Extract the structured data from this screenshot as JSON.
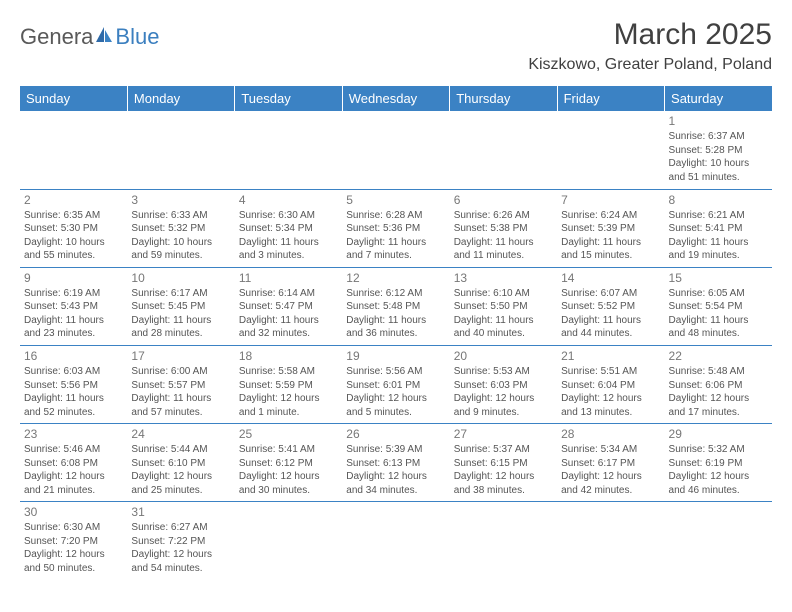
{
  "logo": {
    "primary": "Genera",
    "secondary": "Blue"
  },
  "title": "March 2025",
  "location": "Kiszkowo, Greater Poland, Poland",
  "colors": {
    "header_bg": "#3b82c4",
    "header_text": "#ffffff",
    "border": "#3b82c4",
    "body_text": "#555555",
    "title_text": "#404040",
    "logo_primary": "#595959",
    "logo_secondary": "#3b7fbf"
  },
  "weekdays": [
    "Sunday",
    "Monday",
    "Tuesday",
    "Wednesday",
    "Thursday",
    "Friday",
    "Saturday"
  ],
  "weeks": [
    [
      null,
      null,
      null,
      null,
      null,
      null,
      {
        "d": "1",
        "sr": "6:37 AM",
        "ss": "5:28 PM",
        "dl1": "10 hours",
        "dl2": "and 51 minutes."
      }
    ],
    [
      {
        "d": "2",
        "sr": "6:35 AM",
        "ss": "5:30 PM",
        "dl1": "10 hours",
        "dl2": "and 55 minutes."
      },
      {
        "d": "3",
        "sr": "6:33 AM",
        "ss": "5:32 PM",
        "dl1": "10 hours",
        "dl2": "and 59 minutes."
      },
      {
        "d": "4",
        "sr": "6:30 AM",
        "ss": "5:34 PM",
        "dl1": "11 hours",
        "dl2": "and 3 minutes."
      },
      {
        "d": "5",
        "sr": "6:28 AM",
        "ss": "5:36 PM",
        "dl1": "11 hours",
        "dl2": "and 7 minutes."
      },
      {
        "d": "6",
        "sr": "6:26 AM",
        "ss": "5:38 PM",
        "dl1": "11 hours",
        "dl2": "and 11 minutes."
      },
      {
        "d": "7",
        "sr": "6:24 AM",
        "ss": "5:39 PM",
        "dl1": "11 hours",
        "dl2": "and 15 minutes."
      },
      {
        "d": "8",
        "sr": "6:21 AM",
        "ss": "5:41 PM",
        "dl1": "11 hours",
        "dl2": "and 19 minutes."
      }
    ],
    [
      {
        "d": "9",
        "sr": "6:19 AM",
        "ss": "5:43 PM",
        "dl1": "11 hours",
        "dl2": "and 23 minutes."
      },
      {
        "d": "10",
        "sr": "6:17 AM",
        "ss": "5:45 PM",
        "dl1": "11 hours",
        "dl2": "and 28 minutes."
      },
      {
        "d": "11",
        "sr": "6:14 AM",
        "ss": "5:47 PM",
        "dl1": "11 hours",
        "dl2": "and 32 minutes."
      },
      {
        "d": "12",
        "sr": "6:12 AM",
        "ss": "5:48 PM",
        "dl1": "11 hours",
        "dl2": "and 36 minutes."
      },
      {
        "d": "13",
        "sr": "6:10 AM",
        "ss": "5:50 PM",
        "dl1": "11 hours",
        "dl2": "and 40 minutes."
      },
      {
        "d": "14",
        "sr": "6:07 AM",
        "ss": "5:52 PM",
        "dl1": "11 hours",
        "dl2": "and 44 minutes."
      },
      {
        "d": "15",
        "sr": "6:05 AM",
        "ss": "5:54 PM",
        "dl1": "11 hours",
        "dl2": "and 48 minutes."
      }
    ],
    [
      {
        "d": "16",
        "sr": "6:03 AM",
        "ss": "5:56 PM",
        "dl1": "11 hours",
        "dl2": "and 52 minutes."
      },
      {
        "d": "17",
        "sr": "6:00 AM",
        "ss": "5:57 PM",
        "dl1": "11 hours",
        "dl2": "and 57 minutes."
      },
      {
        "d": "18",
        "sr": "5:58 AM",
        "ss": "5:59 PM",
        "dl1": "12 hours",
        "dl2": "and 1 minute."
      },
      {
        "d": "19",
        "sr": "5:56 AM",
        "ss": "6:01 PM",
        "dl1": "12 hours",
        "dl2": "and 5 minutes."
      },
      {
        "d": "20",
        "sr": "5:53 AM",
        "ss": "6:03 PM",
        "dl1": "12 hours",
        "dl2": "and 9 minutes."
      },
      {
        "d": "21",
        "sr": "5:51 AM",
        "ss": "6:04 PM",
        "dl1": "12 hours",
        "dl2": "and 13 minutes."
      },
      {
        "d": "22",
        "sr": "5:48 AM",
        "ss": "6:06 PM",
        "dl1": "12 hours",
        "dl2": "and 17 minutes."
      }
    ],
    [
      {
        "d": "23",
        "sr": "5:46 AM",
        "ss": "6:08 PM",
        "dl1": "12 hours",
        "dl2": "and 21 minutes."
      },
      {
        "d": "24",
        "sr": "5:44 AM",
        "ss": "6:10 PM",
        "dl1": "12 hours",
        "dl2": "and 25 minutes."
      },
      {
        "d": "25",
        "sr": "5:41 AM",
        "ss": "6:12 PM",
        "dl1": "12 hours",
        "dl2": "and 30 minutes."
      },
      {
        "d": "26",
        "sr": "5:39 AM",
        "ss": "6:13 PM",
        "dl1": "12 hours",
        "dl2": "and 34 minutes."
      },
      {
        "d": "27",
        "sr": "5:37 AM",
        "ss": "6:15 PM",
        "dl1": "12 hours",
        "dl2": "and 38 minutes."
      },
      {
        "d": "28",
        "sr": "5:34 AM",
        "ss": "6:17 PM",
        "dl1": "12 hours",
        "dl2": "and 42 minutes."
      },
      {
        "d": "29",
        "sr": "5:32 AM",
        "ss": "6:19 PM",
        "dl1": "12 hours",
        "dl2": "and 46 minutes."
      }
    ],
    [
      {
        "d": "30",
        "sr": "6:30 AM",
        "ss": "7:20 PM",
        "dl1": "12 hours",
        "dl2": "and 50 minutes."
      },
      {
        "d": "31",
        "sr": "6:27 AM",
        "ss": "7:22 PM",
        "dl1": "12 hours",
        "dl2": "and 54 minutes."
      },
      null,
      null,
      null,
      null,
      null
    ]
  ],
  "labels": {
    "sunrise": "Sunrise:",
    "sunset": "Sunset:",
    "daylight": "Daylight:"
  }
}
